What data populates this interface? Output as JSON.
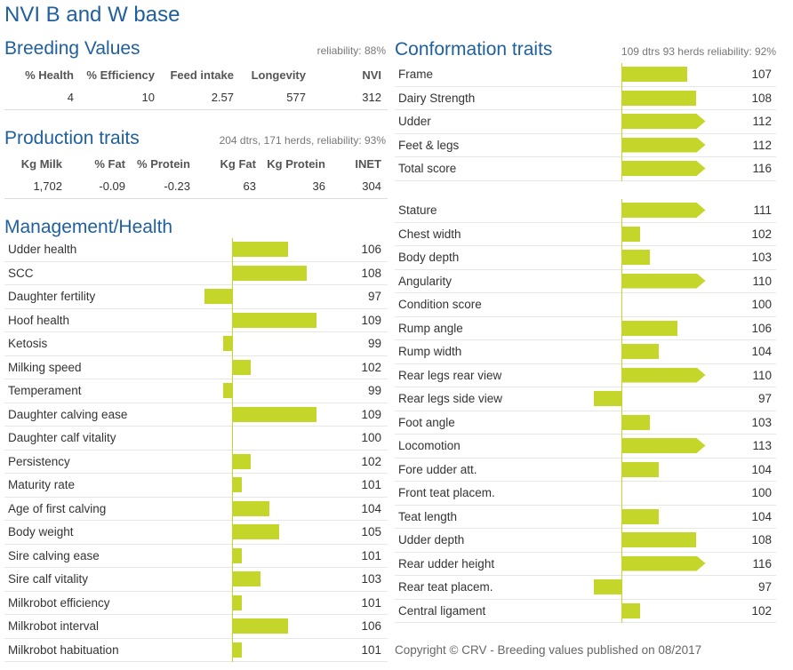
{
  "title": "NVI B and W base",
  "breeding_values": {
    "title": "Breeding Values",
    "meta": "reliability: 88%",
    "headers": [
      "% Health",
      "% Efficiency",
      "Feed intake",
      "Longevity",
      "NVI"
    ],
    "values": [
      "4",
      "10",
      "2.57",
      "577",
      "312"
    ]
  },
  "production": {
    "title": "Production traits",
    "meta": "204 dtrs, 171 herds, reliability: 93%",
    "headers": [
      "Kg Milk",
      "% Fat",
      "% Protein",
      "Kg Fat",
      "Kg Protein",
      "INET"
    ],
    "values": [
      "1,702",
      "-0.09",
      "-0.23",
      "63",
      "36",
      "304"
    ]
  },
  "management": {
    "title": "Management/Health",
    "rows": [
      {
        "name": "Udder health",
        "value": 106
      },
      {
        "name": "SCC",
        "value": 108
      },
      {
        "name": "Daughter fertility",
        "value": 97
      },
      {
        "name": "Hoof health",
        "value": 109
      },
      {
        "name": "Ketosis",
        "value": 99
      },
      {
        "name": "Milking speed",
        "value": 102
      },
      {
        "name": "Temperament",
        "value": 99
      },
      {
        "name": "Daughter calving ease",
        "value": 109
      },
      {
        "name": "Daughter calf vitality",
        "value": 100
      },
      {
        "name": "Persistency",
        "value": 102
      },
      {
        "name": "Maturity rate",
        "value": 101
      },
      {
        "name": "Age of first calving",
        "value": 104
      },
      {
        "name": "Body weight",
        "value": 105
      },
      {
        "name": "Sire calving ease",
        "value": 101
      },
      {
        "name": "Sire calf vitality",
        "value": 103
      },
      {
        "name": "Milkrobot efficiency",
        "value": 101
      },
      {
        "name": "Milkrobot interval",
        "value": 106
      },
      {
        "name": "Milkrobot habituation",
        "value": 101
      }
    ]
  },
  "conformation": {
    "title": "Conformation traits",
    "meta": "109 dtrs 93 herds reliability: 92%",
    "summary_rows": [
      {
        "name": "Frame",
        "value": 107
      },
      {
        "name": "Dairy Strength",
        "value": 108
      },
      {
        "name": "Udder",
        "value": 112
      },
      {
        "name": "Feet & legs",
        "value": 112
      },
      {
        "name": "Total score",
        "value": 116
      }
    ],
    "detail_rows": [
      {
        "name": "Stature",
        "value": 111
      },
      {
        "name": "Chest width",
        "value": 102
      },
      {
        "name": "Body depth",
        "value": 103
      },
      {
        "name": "Angularity",
        "value": 110
      },
      {
        "name": "Condition score",
        "value": 100
      },
      {
        "name": "Rump angle",
        "value": 106
      },
      {
        "name": "Rump width",
        "value": 104
      },
      {
        "name": "Rear legs rear view",
        "value": 110
      },
      {
        "name": "Rear legs side view",
        "value": 97
      },
      {
        "name": "Foot angle",
        "value": 103
      },
      {
        "name": "Locomotion",
        "value": 113
      },
      {
        "name": "Fore udder att.",
        "value": 104
      },
      {
        "name": "Front teat placem.",
        "value": 100
      },
      {
        "name": "Teat length",
        "value": 104
      },
      {
        "name": "Udder depth",
        "value": 108
      },
      {
        "name": "Rear udder height",
        "value": 116
      },
      {
        "name": "Rear teat placem.",
        "value": 97
      },
      {
        "name": "Central ligament",
        "value": 102
      }
    ]
  },
  "colors": {
    "title": "#1f5f9e",
    "bar": "#c5d62a"
  },
  "footer": "Copyright © CRV - Breeding values published on 08/2017"
}
